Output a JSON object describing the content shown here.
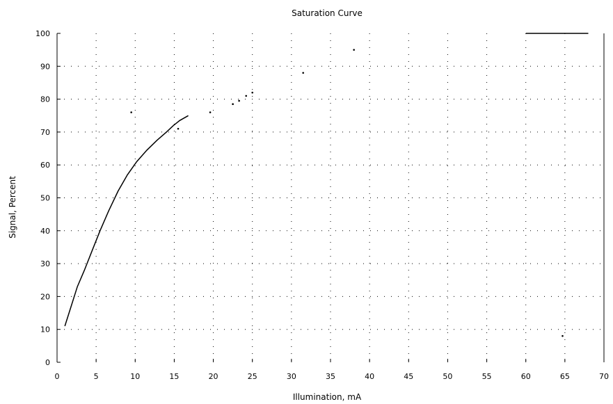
{
  "chart_data": {
    "type": "line",
    "title": "Saturation Curve",
    "xlabel": "Illumination, mA",
    "ylabel": "Signal, Percent",
    "xlim": [
      0,
      70
    ],
    "ylim": [
      0,
      100
    ],
    "x_ticks": [
      "0",
      "5",
      "10",
      "15",
      "20",
      "25",
      "30",
      "35",
      "40",
      "45",
      "50",
      "55",
      "60",
      "65",
      "70"
    ],
    "y_ticks": [
      "0",
      "10",
      "20",
      "30",
      "40",
      "50",
      "60",
      "70",
      "80",
      "90",
      "100"
    ],
    "grid": "dotted",
    "series": [
      {
        "segments": [
          {
            "x": [
              1,
              1.8,
              2.6,
              3.5,
              4.5,
              5.5,
              6.6,
              7.8,
              9,
              10.2,
              11.5,
              12.8,
              14,
              14.9,
              15.7,
              16.8
            ],
            "y": [
              11,
              17,
              23,
              28,
              34,
              40,
              46,
              52,
              57,
              61,
              64.5,
              67.5,
              70,
              72,
              73.5,
              75
            ]
          },
          {
            "x": [
              60,
              62,
              64,
              66,
              68
            ],
            "y": [
              100,
              100,
              100,
              100,
              100
            ]
          }
        ]
      }
    ],
    "scatter_points": {
      "x": [
        22.5,
        23.3,
        24.2,
        19.6,
        9.5,
        25,
        38,
        31.5,
        15.5,
        64.7
      ],
      "y": [
        78.5,
        79.5,
        81,
        76,
        76,
        82,
        95,
        88,
        71,
        8
      ]
    }
  }
}
